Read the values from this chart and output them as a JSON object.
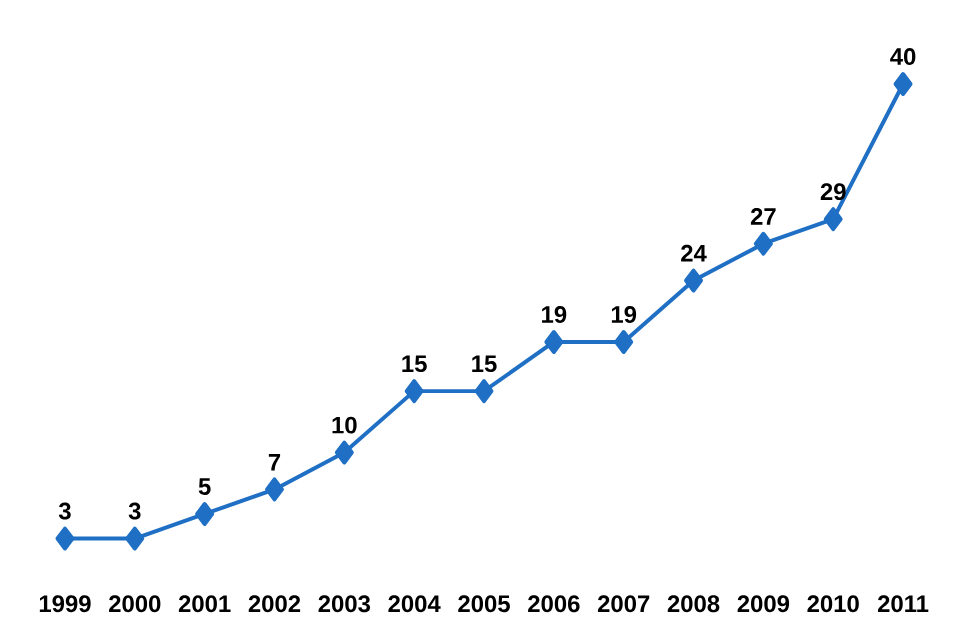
{
  "chart_data": {
    "type": "line",
    "categories": [
      "1999",
      "2000",
      "2001",
      "2002",
      "2003",
      "2004",
      "2005",
      "2006",
      "2007",
      "2008",
      "2009",
      "2010",
      "2011"
    ],
    "values": [
      3,
      3,
      5,
      7,
      10,
      15,
      15,
      19,
      19,
      24,
      27,
      29,
      40
    ],
    "color": "#1f6fc5",
    "marker": "diamond",
    "line_style": "solid",
    "data_labels": true
  }
}
